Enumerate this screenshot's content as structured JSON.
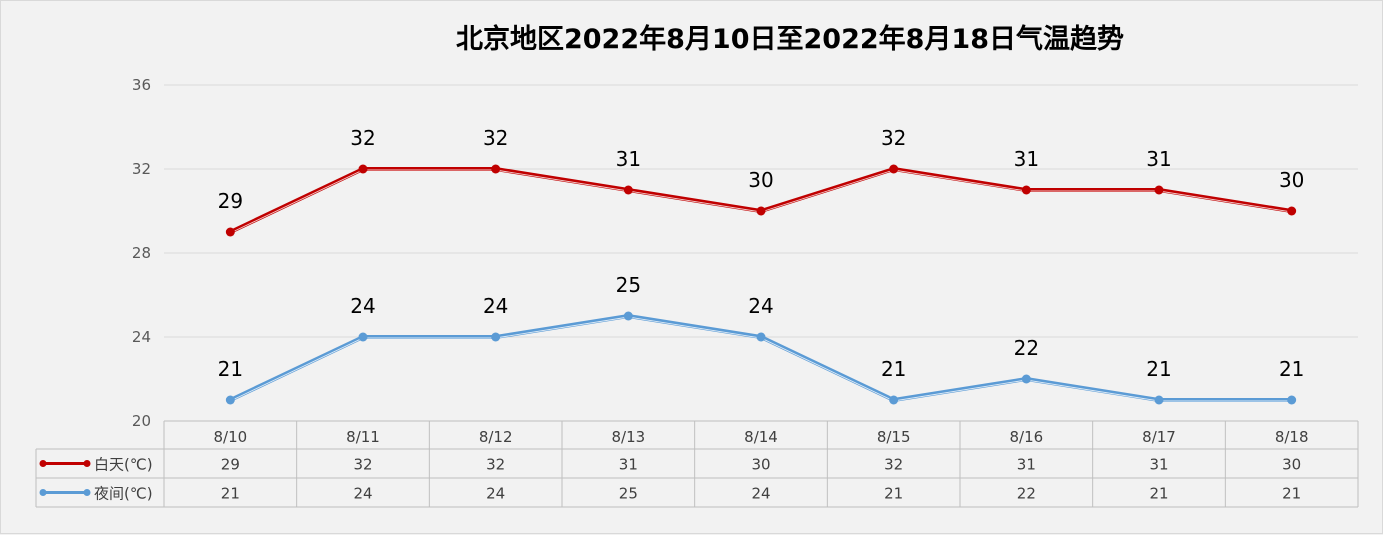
{
  "chart_data": {
    "type": "line",
    "title": "北京地区2022年8月10日至2022年8月18日气温趋势",
    "categories": [
      "8/10",
      "8/11",
      "8/12",
      "8/13",
      "8/14",
      "8/15",
      "8/16",
      "8/17",
      "8/18"
    ],
    "y_ticks": [
      "20",
      "24",
      "28",
      "32",
      "36"
    ],
    "ylim": [
      20,
      36
    ],
    "grid": true,
    "legend": "data-table",
    "series": [
      {
        "name": "白天(℃)",
        "color": "#c00000",
        "values": [
          29,
          32,
          32,
          31,
          30,
          32,
          31,
          31,
          30
        ]
      },
      {
        "name": "夜间(℃)",
        "color": "#5b9bd5",
        "values": [
          21,
          24,
          24,
          25,
          24,
          21,
          22,
          21,
          21
        ]
      }
    ]
  }
}
